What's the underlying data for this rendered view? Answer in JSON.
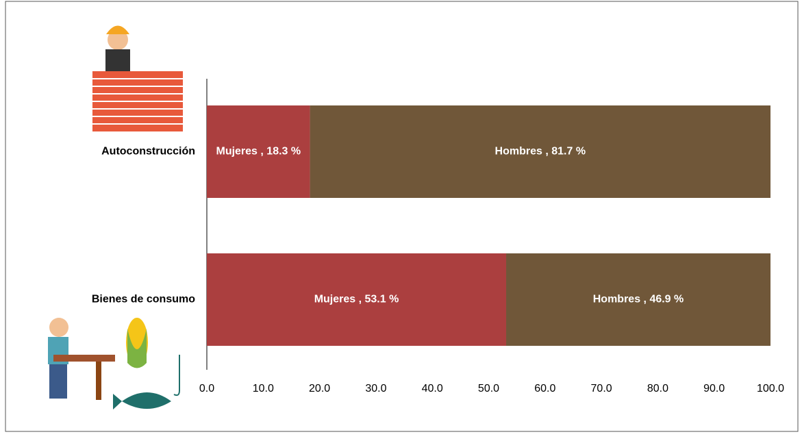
{
  "chart_data": {
    "type": "stacked-bar",
    "orientation": "horizontal",
    "categories": [
      "Autoconstrucción",
      "Bienes de consumo"
    ],
    "series": [
      {
        "color": "#ab3f3f",
        "values": [
          18.3,
          53.1
        ],
        "value_labels": [
          "Mujeres , 18.3 %",
          "Mujeres , 53.1 %"
        ]
      },
      {
        "color": "#705739",
        "values": [
          81.7,
          46.9
        ],
        "value_labels": [
          "Hombres , 81.7 %",
          "Hombres , 46.9 %"
        ]
      }
    ],
    "xlim": [
      0,
      100
    ],
    "xticks": [
      {
        "value": 0,
        "label": "0.0"
      },
      {
        "value": 10,
        "label": "10.0"
      },
      {
        "value": 20,
        "label": "20.0"
      },
      {
        "value": 30,
        "label": "30.0"
      },
      {
        "value": 40,
        "label": "40.0"
      },
      {
        "value": 50,
        "label": "50.0"
      },
      {
        "value": 60,
        "label": "60.0"
      },
      {
        "value": 70,
        "label": "70.0"
      },
      {
        "value": 80,
        "label": "80.0"
      },
      {
        "value": 90,
        "label": "90.0"
      },
      {
        "value": 100,
        "label": "100.0"
      }
    ]
  }
}
